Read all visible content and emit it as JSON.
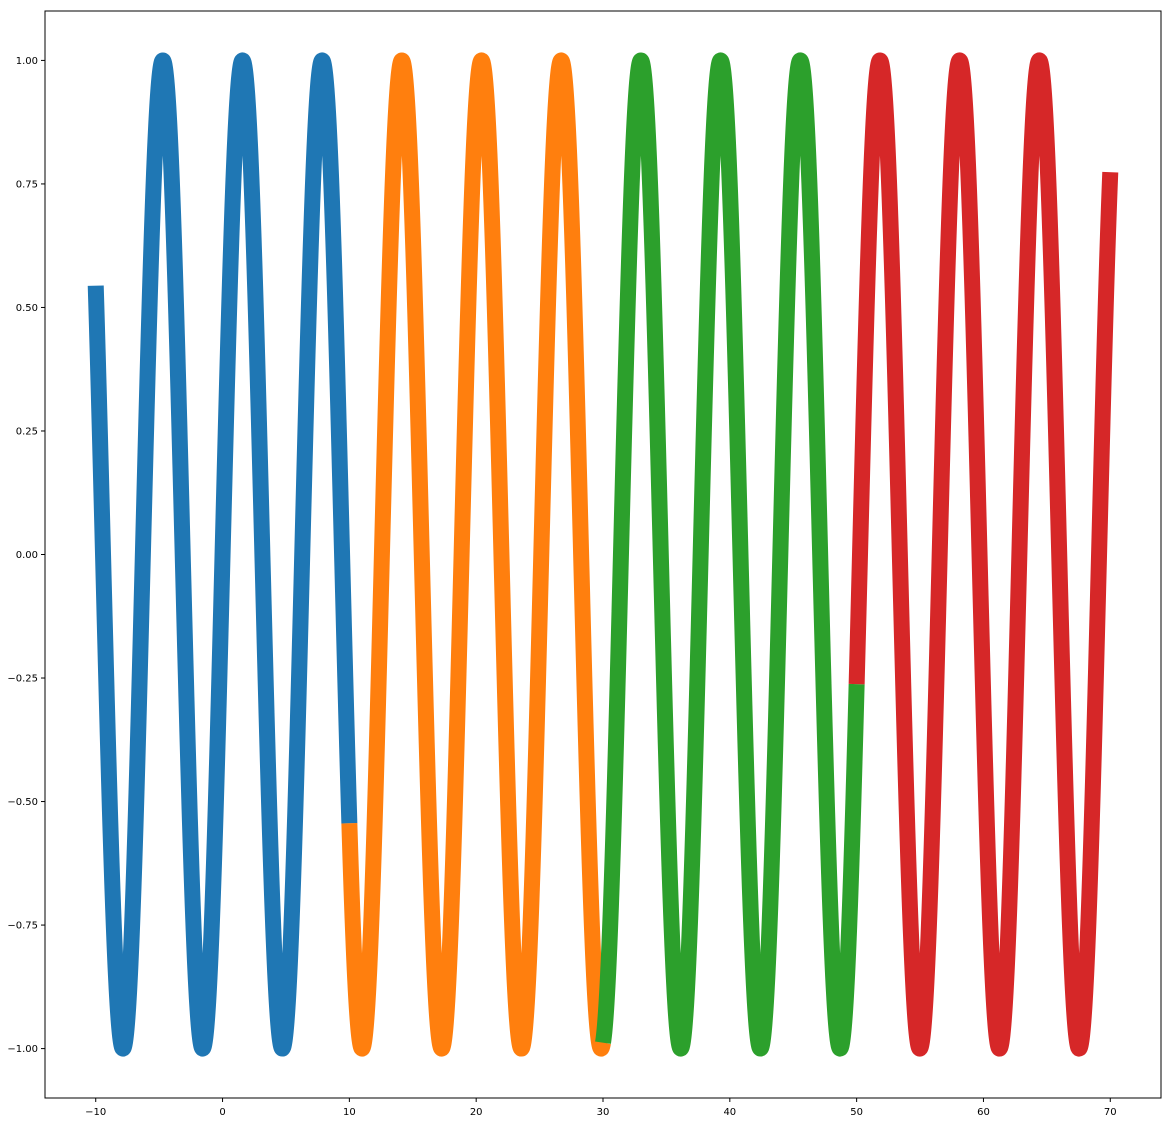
{
  "chart_data": {
    "type": "line",
    "function": "sin(x)",
    "series": [
      {
        "x_range": [
          -10,
          10
        ],
        "color": "#1f77b4"
      },
      {
        "x_range": [
          10,
          30
        ],
        "color": "#ff7f0e"
      },
      {
        "x_range": [
          30,
          50
        ],
        "color": "#2ca02c"
      },
      {
        "x_range": [
          50,
          70
        ],
        "color": "#d62728"
      }
    ],
    "line_width_data_note": "thick lines",
    "xlim": [
      -14,
      74
    ],
    "ylim": [
      -1.1,
      1.1
    ],
    "x_ticks": [
      -10,
      0,
      10,
      20,
      30,
      40,
      50,
      60,
      70
    ],
    "x_tick_labels": [
      "−10",
      "0",
      "10",
      "20",
      "30",
      "40",
      "50",
      "60",
      "70"
    ],
    "y_ticks": [
      -1.0,
      -0.75,
      -0.5,
      -0.25,
      0.0,
      0.25,
      0.5,
      0.75,
      1.0
    ],
    "y_tick_labels": [
      "−1.00",
      "−0.75",
      "−0.50",
      "−0.25",
      "0.00",
      "0.25",
      "0.50",
      "0.75",
      "1.00"
    ],
    "grid": false,
    "legend": "none"
  }
}
